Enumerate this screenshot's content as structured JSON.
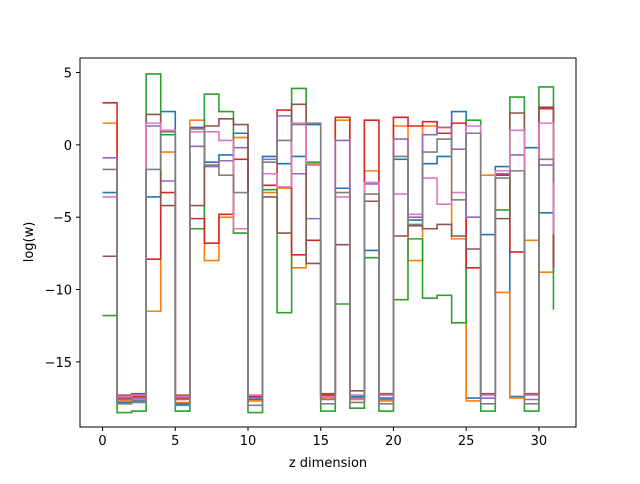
{
  "chart_data": {
    "type": "line",
    "step": "post",
    "title": "",
    "xlabel": "z dimension",
    "ylabel": "log(w)",
    "xlim": [
      -1.55,
      32.55
    ],
    "ylim": [
      -19.5,
      6.0
    ],
    "xticks": [
      0,
      5,
      10,
      15,
      20,
      25,
      30
    ],
    "yticks": [
      5,
      0,
      -5,
      -10,
      -15
    ],
    "grid": false,
    "legend": "none",
    "x": [
      0,
      1,
      2,
      3,
      4,
      5,
      6,
      7,
      8,
      9,
      10,
      11,
      12,
      13,
      14,
      15,
      16,
      17,
      18,
      19,
      20,
      21,
      22,
      23,
      24,
      25,
      26,
      27,
      28,
      29,
      30,
      31
    ],
    "series": [
      {
        "color": "#1f77b4",
        "values": [
          -3.3,
          -17.8,
          -17.7,
          -3.6,
          2.3,
          -17.9,
          1.2,
          -1.2,
          -0.7,
          0.8,
          -17.6,
          -0.8,
          -1.3,
          -0.8,
          1.4,
          -17.4,
          -3.0,
          -17.4,
          -7.3,
          -17.5,
          -1.0,
          -5.2,
          -1.3,
          -0.8,
          2.3,
          -17.5,
          -6.2,
          -1.5,
          -17.4,
          -0.2,
          -4.7,
          -8.8
        ]
      },
      {
        "color": "#ff7f0e",
        "values": [
          1.5,
          -17.7,
          -17.6,
          -11.5,
          -0.5,
          -17.8,
          1.7,
          -8.0,
          -5.0,
          0.5,
          -17.7,
          -3.3,
          -3.0,
          -8.5,
          -1.4,
          -17.5,
          1.7,
          -17.6,
          -1.8,
          -17.7,
          1.3,
          -8.0,
          1.3,
          1.2,
          -6.5,
          -17.7,
          -2.1,
          -10.2,
          -17.5,
          -6.6,
          -8.8,
          -8.8
        ]
      },
      {
        "color": "#2ca02c",
        "values": [
          -11.8,
          -18.5,
          -18.4,
          4.9,
          0.7,
          -18.4,
          -5.8,
          3.5,
          2.3,
          -6.1,
          -18.5,
          -3.1,
          -11.6,
          3.9,
          -1.2,
          -18.4,
          -11.0,
          -18.2,
          -7.8,
          -18.4,
          -10.7,
          -6.5,
          -10.6,
          -10.4,
          -12.3,
          1.7,
          -18.4,
          -4.5,
          3.3,
          -18.4,
          4.0,
          -11.4
        ]
      },
      {
        "color": "#d62728",
        "values": [
          2.9,
          -17.5,
          -17.4,
          -7.9,
          -3.3,
          -17.5,
          -5.1,
          -6.8,
          -4.8,
          -1.0,
          -17.4,
          -2.8,
          2.4,
          -7.6,
          -6.6,
          -17.3,
          1.9,
          -17.3,
          1.7,
          -17.3,
          1.9,
          1.3,
          1.6,
          0.8,
          1.5,
          -8.5,
          -17.3,
          -2.1,
          -7.4,
          -17.3,
          2.5,
          -8.5
        ]
      },
      {
        "color": "#9467bd",
        "values": [
          -0.9,
          -17.6,
          -17.5,
          1.3,
          -2.5,
          -17.6,
          -0.1,
          -1.5,
          -1.1,
          -0.2,
          -17.5,
          -1.0,
          2.0,
          -2.0,
          -5.1,
          -17.6,
          0.3,
          -17.5,
          -2.7,
          -17.6,
          0.4,
          -5.0,
          0.7,
          1.2,
          -0.3,
          -5.0,
          -17.5,
          -2.0,
          -0.7,
          -17.6,
          -1.4,
          -6.0
        ]
      },
      {
        "color": "#8c564b",
        "values": [
          -7.7,
          -17.3,
          -17.2,
          2.1,
          -4.2,
          -17.3,
          -4.2,
          1.3,
          1.8,
          1.4,
          -17.3,
          -3.6,
          -6.1,
          2.8,
          -8.2,
          -17.2,
          -6.9,
          -17.0,
          -3.9,
          -17.2,
          -6.3,
          -5.6,
          -5.8,
          -5.5,
          -6.3,
          -7.2,
          -17.2,
          -5.1,
          2.2,
          -17.2,
          2.6,
          -2.6
        ]
      },
      {
        "color": "#e377c2",
        "values": [
          -3.6,
          -17.4,
          -17.3,
          1.5,
          1.0,
          -17.4,
          0.9,
          0.9,
          0.3,
          -5.8,
          -17.3,
          -2.0,
          -2.9,
          1.5,
          -1.3,
          -17.4,
          -3.6,
          -17.3,
          -2.6,
          -17.3,
          -3.4,
          -4.8,
          -2.3,
          -4.1,
          -3.3,
          1.3,
          -17.3,
          -1.8,
          1.0,
          -17.3,
          1.5,
          -6.2
        ]
      },
      {
        "color": "#7f7f7f",
        "values": [
          -1.7,
          -17.9,
          -17.8,
          -1.7,
          0.9,
          -18.0,
          1.1,
          -1.4,
          -2.1,
          -3.3,
          -18.0,
          -1.2,
          0.3,
          1.4,
          1.5,
          -17.9,
          -3.3,
          -17.8,
          -3.4,
          -17.9,
          -0.8,
          -5.5,
          -0.5,
          0.4,
          -3.8,
          0.8,
          -17.9,
          -2.3,
          -1.8,
          -17.9,
          -1.0,
          -2.6
        ]
      }
    ]
  }
}
